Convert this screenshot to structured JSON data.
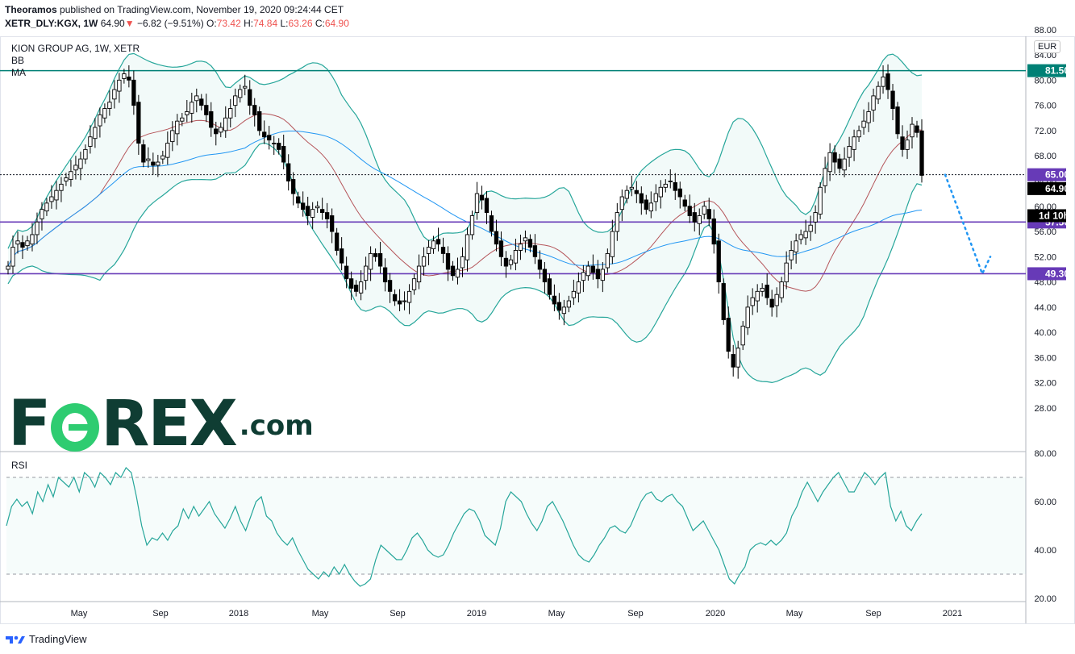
{
  "header": {
    "publisher": "Theoramos",
    "published_text": "published on TradingView.com, November 19, 2020 09:24:44 CET",
    "symbol": "XETR_DLY:KGX, 1W",
    "last": "64.90",
    "change": "−6.82 (−9.51%)",
    "open_label": "O:",
    "open": "73.42",
    "high_label": "H:",
    "high": "74.84",
    "low_label": "L:",
    "low": "63.26",
    "close_label": "C:",
    "close": "64.90"
  },
  "legend": {
    "title": "KION GROUP AG, 1W, XETR",
    "bb": "BB",
    "ma": "MA",
    "rsi": "RSI"
  },
  "currency": "EUR",
  "logo": {
    "f": "F",
    "rex": "REX",
    "com": ".com"
  },
  "footer": {
    "brand": "TradingView"
  },
  "colors": {
    "candle": "#000000",
    "bb_band": "#26a69a",
    "bb_basis": "#b5555a",
    "ma": "#2196f3",
    "resistance": "#008075",
    "support": "#673ab7",
    "projection": "#2196f3",
    "rsi": "#26a69a"
  },
  "chart_data": [
    {
      "type": "candlestick",
      "title": "KION GROUP AG, 1W, XETR",
      "x_ticks": [
        "May",
        "Sep",
        "2018",
        "May",
        "Sep",
        "2019",
        "May",
        "Sep",
        "2020",
        "May",
        "Sep",
        "2021"
      ],
      "ylim": [
        26,
        88
      ],
      "y_ticks": [
        28,
        32,
        36,
        40,
        44,
        48,
        52,
        56,
        60,
        64,
        68,
        72,
        76,
        80,
        84,
        88
      ],
      "y_tick_labels": [
        "28.00",
        "32.00",
        "36.00",
        "40.00",
        "44.00",
        "48.00",
        "52.00",
        "56.00",
        "60.00",
        "64.00",
        "68.00",
        "72.00",
        "76.00",
        "80.00",
        "84.00",
        "88.00"
      ],
      "close": [
        50.5,
        53.5,
        54.5,
        53.5,
        54.5,
        55.5,
        57.5,
        59.5,
        60.5,
        61.5,
        62.5,
        63.5,
        64.5,
        65.5,
        66.5,
        67.5,
        69.0,
        71.0,
        72.5,
        74.5,
        75.5,
        76.5,
        78.5,
        80.0,
        81.0,
        80.0,
        76.0,
        70.0,
        67.0,
        67.5,
        66.5,
        67.0,
        68.0,
        70.0,
        72.0,
        73.5,
        74.0,
        75.0,
        76.5,
        77.5,
        76.0,
        74.5,
        72.5,
        71.5,
        72.5,
        74.0,
        75.5,
        77.5,
        78.5,
        79.0,
        76.0,
        74.5,
        72.0,
        71.0,
        70.5,
        70.0,
        69.0,
        67.0,
        64.0,
        62.0,
        60.5,
        59.5,
        58.5,
        59.5,
        60.0,
        59.0,
        58.0,
        56.0,
        53.0,
        51.0,
        48.5,
        47.0,
        46.5,
        48.0,
        50.5,
        52.5,
        52.0,
        50.5,
        48.0,
        46.5,
        45.0,
        44.5,
        45.0,
        46.5,
        48.5,
        50.5,
        52.0,
        53.5,
        54.5,
        54.0,
        52.5,
        50.0,
        49.0,
        50.0,
        52.0,
        55.5,
        58.5,
        62.0,
        61.0,
        59.0,
        56.0,
        54.0,
        52.0,
        50.5,
        51.5,
        53.0,
        54.0,
        55.0,
        53.5,
        52.0,
        50.0,
        48.0,
        46.0,
        44.5,
        43.5,
        44.0,
        45.0,
        46.5,
        48.0,
        49.5,
        50.5,
        49.5,
        48.5,
        50.0,
        52.5,
        56.0,
        59.0,
        61.5,
        62.5,
        63.0,
        62.0,
        60.5,
        59.5,
        60.5,
        62.0,
        63.0,
        63.5,
        64.0,
        62.5,
        61.5,
        60.0,
        58.5,
        57.5,
        58.5,
        60.0,
        58.0,
        54.0,
        48.0,
        42.0,
        37.0,
        34.5,
        37.5,
        41.0,
        44.0,
        45.5,
        46.5,
        47.0,
        45.5,
        44.0,
        46.0,
        48.0,
        51.0,
        53.0,
        54.5,
        55.5,
        56.0,
        57.0,
        59.0,
        63.0,
        66.0,
        68.5,
        67.0,
        66.0,
        67.5,
        69.5,
        71.0,
        72.0,
        73.5,
        75.0,
        77.5,
        79.0,
        80.5,
        78.5,
        75.5,
        71.5,
        69.0,
        70.5,
        73.0,
        71.7,
        64.9
      ],
      "series": [
        {
          "name": "BB",
          "type": "band"
        },
        {
          "name": "MA",
          "type": "line"
        }
      ],
      "levels": [
        {
          "value": 81.5,
          "label": "81.50",
          "color": "#008075"
        },
        {
          "value": 65.0,
          "label": "65.00",
          "color": "#673ab7",
          "style": "dotted"
        },
        {
          "value": 57.5,
          "label": "57.50",
          "color": "#673ab7"
        },
        {
          "value": 49.3,
          "label": "49.30",
          "color": "#673ab7"
        }
      ],
      "last_price_label": "64.90",
      "countdown_label": "1d 10h",
      "projection": [
        [
          65.0,
          49.3
        ],
        [
          49.3,
          52.0
        ]
      ]
    },
    {
      "type": "line",
      "title": "RSI",
      "ylim": [
        18,
        82
      ],
      "y_ticks": [
        20,
        40,
        60,
        80
      ],
      "y_tick_labels": [
        "20.00",
        "40.00",
        "60.00",
        "80.00"
      ],
      "bands": [
        30,
        70
      ],
      "values": [
        50,
        58,
        61,
        58,
        60,
        55,
        64,
        60,
        67,
        62,
        70,
        68,
        66,
        70,
        64,
        72,
        70,
        66,
        72,
        70,
        67,
        72,
        70,
        74,
        72,
        62,
        50,
        42,
        45,
        44,
        47,
        44,
        48,
        50,
        57,
        53,
        58,
        54,
        57,
        60,
        55,
        52,
        49,
        53,
        58,
        52,
        48,
        54,
        60,
        62,
        54,
        52,
        47,
        44,
        42,
        45,
        40,
        36,
        32,
        30,
        28,
        31,
        29,
        33,
        30,
        34,
        30,
        27,
        25,
        26,
        28,
        36,
        42,
        40,
        38,
        36,
        36,
        40,
        45,
        47,
        44,
        40,
        38,
        37,
        38,
        42,
        47,
        51,
        55,
        57,
        56,
        52,
        46,
        44,
        42,
        49,
        60,
        64,
        62,
        60,
        55,
        51,
        48,
        52,
        58,
        60,
        56,
        52,
        47,
        42,
        38,
        36,
        35,
        38,
        42,
        45,
        49,
        50,
        48,
        47,
        50,
        55,
        60,
        63,
        64,
        61,
        60,
        62,
        63,
        60,
        58,
        53,
        48,
        50,
        52,
        48,
        44,
        40,
        34,
        28,
        26,
        30,
        33,
        40,
        42,
        43,
        42,
        44,
        42,
        44,
        47,
        54,
        58,
        64,
        68,
        64,
        60,
        64,
        67,
        70,
        72,
        68,
        64,
        64,
        68,
        72,
        70,
        67,
        70,
        72,
        58,
        52,
        56,
        50,
        48,
        52,
        55
      ]
    }
  ]
}
